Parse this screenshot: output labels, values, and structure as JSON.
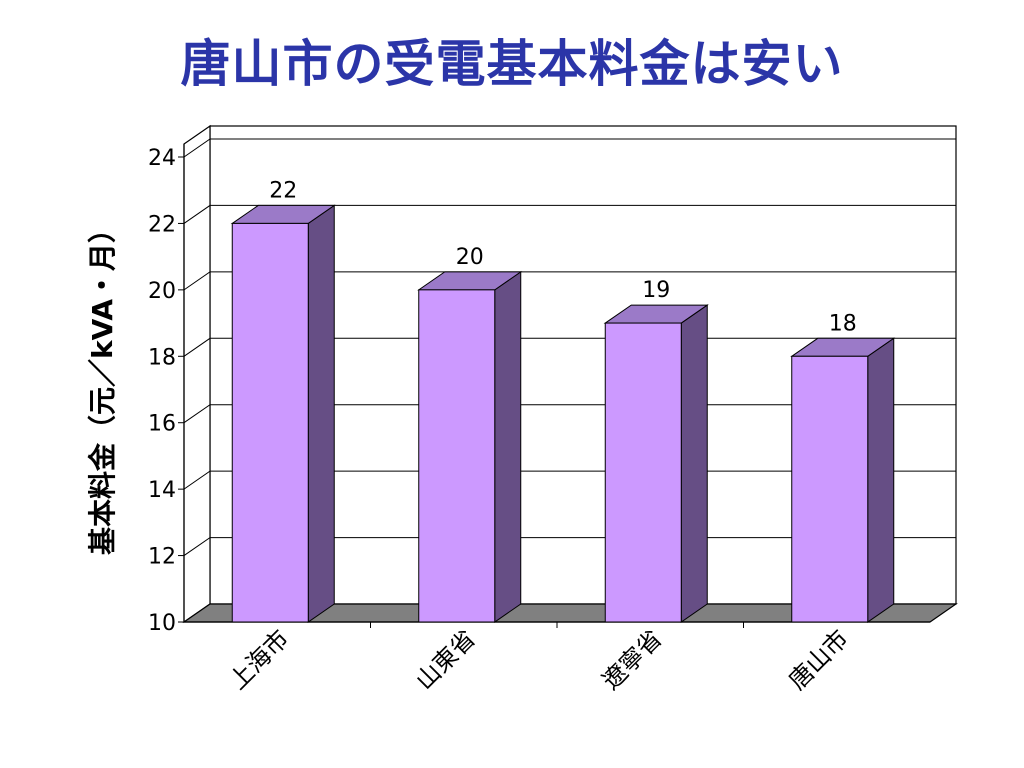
{
  "slide": {
    "title": "唐山市の受電基本料金は安い"
  },
  "chart_data": {
    "type": "bar",
    "title": "唐山市の受電基本料金は安い",
    "ylabel": "基本料金（元／kVA・月）",
    "xlabel": "",
    "categories": [
      "上海市",
      "山東省",
      "遼寧省",
      "唐山市"
    ],
    "values": [
      22,
      20,
      19,
      18
    ],
    "data_labels": [
      "22",
      "20",
      "19",
      "18"
    ],
    "ylim": [
      10,
      24
    ],
    "yticks": [
      "10",
      "12",
      "14",
      "16",
      "18",
      "20",
      "22",
      "24"
    ],
    "grid": true,
    "legend": "none",
    "three_d": true,
    "colors": {
      "bar_front": "#cc99ff",
      "bar_side": "#664e85",
      "bar_top": "#9b7ac8",
      "floor": "#808080",
      "gridline": "#000000"
    }
  }
}
